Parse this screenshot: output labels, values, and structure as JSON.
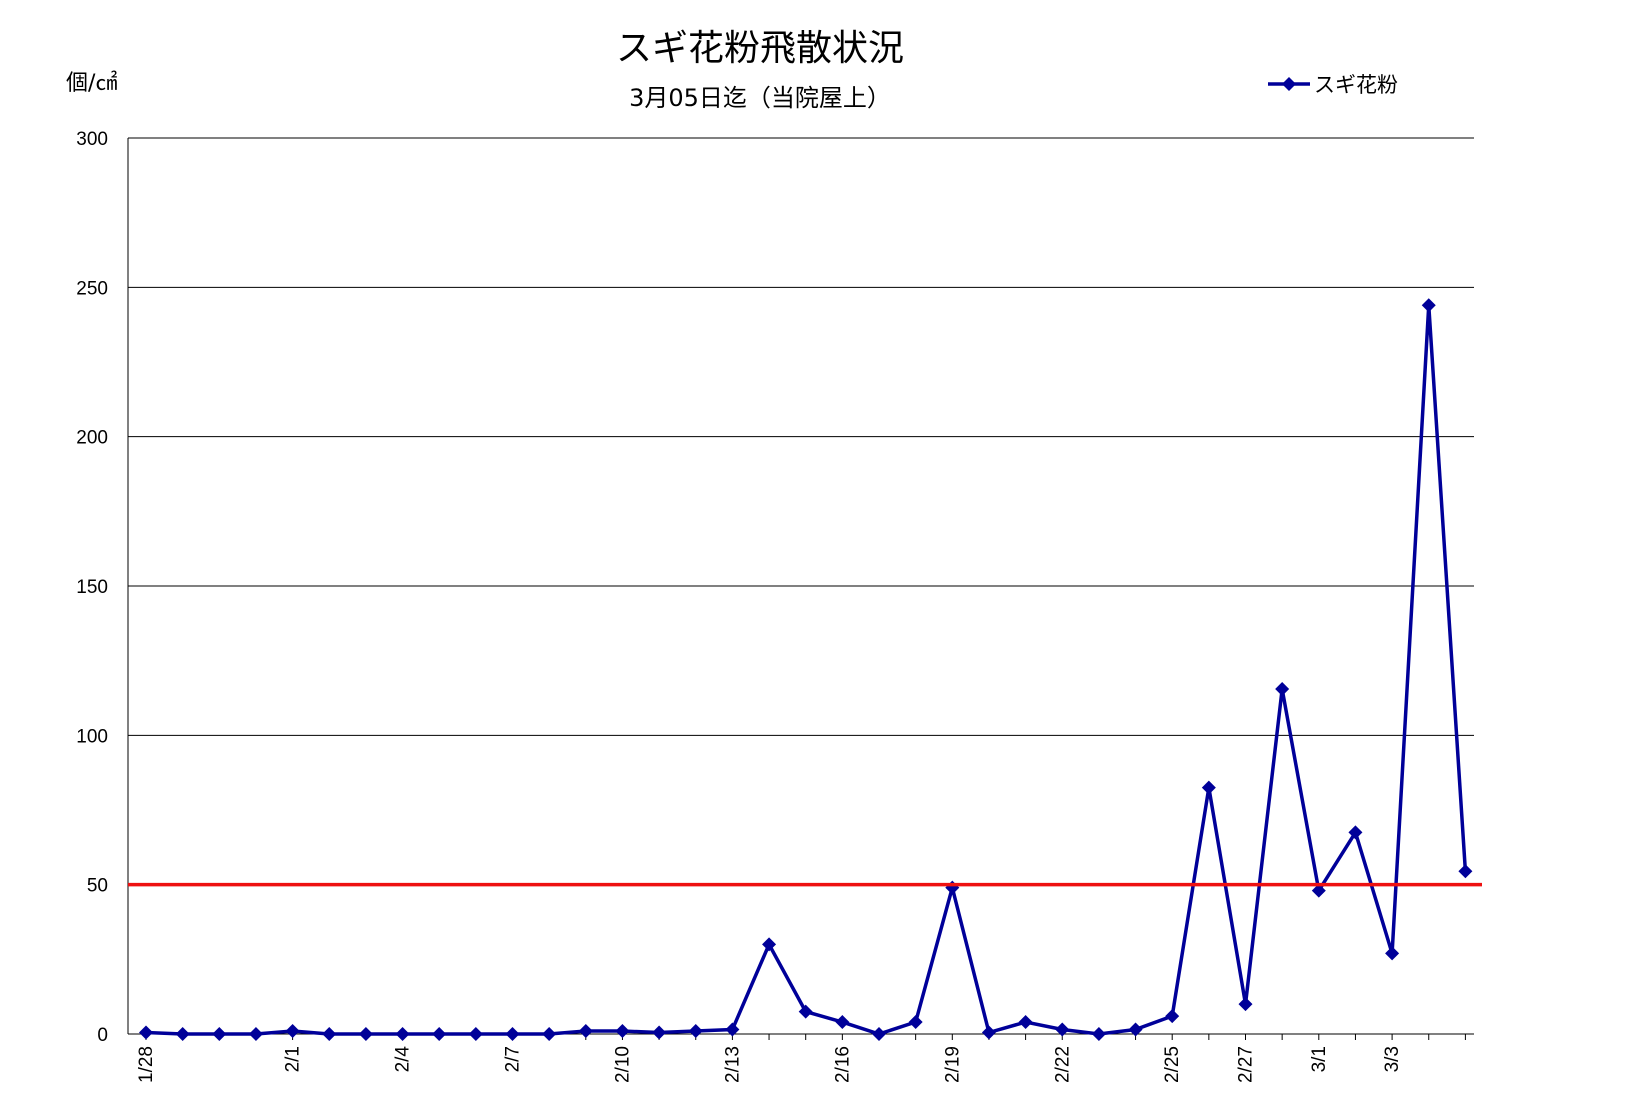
{
  "chart_data": {
    "type": "line",
    "title": "スギ花粉飛散状況",
    "subtitle": "3月05日迄（当院屋上）",
    "ylabel": "個/㎠",
    "ylim": [
      0,
      300
    ],
    "yticks": [
      0,
      50,
      100,
      150,
      200,
      250,
      300
    ],
    "grid": true,
    "legend": "top-right",
    "x": [
      "1/28",
      "1/29",
      "1/30",
      "1/31",
      "2/1",
      "2/2",
      "2/3",
      "2/4",
      "2/5",
      "2/6",
      "2/7",
      "2/8",
      "2/9",
      "2/10",
      "2/11",
      "2/12",
      "2/13",
      "2/14",
      "2/15",
      "2/16",
      "2/17",
      "2/18",
      "2/19",
      "2/20",
      "2/21",
      "2/22",
      "2/23",
      "2/24",
      "2/25",
      "2/26",
      "2/27",
      "2/28",
      "3/1",
      "3/2",
      "3/3",
      "3/4",
      "3/5"
    ],
    "x_tick_labels": [
      "1/28",
      "",
      "",
      "",
      "2/1",
      "",
      "",
      "2/4",
      "",
      "",
      "2/7",
      "",
      "",
      "2/10",
      "",
      "",
      "2/13",
      "",
      "",
      "2/16",
      "",
      "",
      "2/19",
      "",
      "",
      "2/22",
      "",
      "",
      "2/25",
      "",
      "2/27",
      "",
      "3/1",
      "",
      "3/3",
      "",
      ""
    ],
    "series": [
      {
        "name": "スギ花粉",
        "color": "#000099",
        "marker": "diamond",
        "values": [
          0.5,
          0,
          0,
          0,
          1,
          0,
          0,
          0,
          0,
          0,
          0,
          0,
          1,
          1,
          0.5,
          1,
          1.5,
          30,
          7.5,
          4,
          0,
          4,
          49,
          0.5,
          4,
          1.5,
          0,
          1.5,
          6,
          82.5,
          10,
          115.5,
          48,
          67.5,
          27,
          244,
          54.5
        ]
      }
    ],
    "reference_line": {
      "value": 50,
      "color": "#ee1111"
    }
  }
}
